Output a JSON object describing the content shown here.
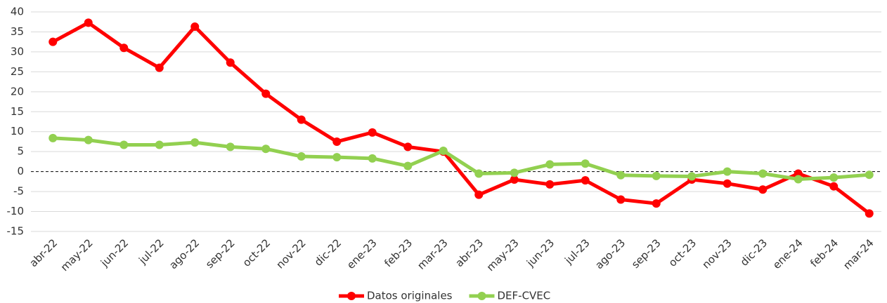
{
  "chart_data": {
    "type": "line",
    "categories": [
      "abr-22",
      "may-22",
      "jun-22",
      "jul-22",
      "ago-22",
      "sep-22",
      "oct-22",
      "nov-22",
      "dic-22",
      "ene-23",
      "feb-23",
      "mar-23",
      "abr-23",
      "may-23",
      "jun-23",
      "jul-23",
      "ago-23",
      "sep-23",
      "oct-23",
      "nov-23",
      "dic-23",
      "ene-24",
      "feb-24",
      "mar-24"
    ],
    "series": [
      {
        "name": "Datos originales",
        "color": "#ff0000",
        "values": [
          32.5,
          37.3,
          31,
          26,
          36.3,
          27.3,
          19.5,
          13,
          7.5,
          9.8,
          6.2,
          5,
          -5.8,
          -2,
          -3.2,
          -2.2,
          -7,
          -8,
          -2,
          -3,
          -4.5,
          -0.5,
          -3.7,
          -10.5
        ]
      },
      {
        "name": "DEF-CVEC",
        "color": "#92d050",
        "values": [
          8.4,
          7.9,
          6.7,
          6.7,
          7.3,
          6.2,
          5.7,
          3.8,
          3.6,
          3.3,
          1.4,
          5.2,
          -0.5,
          -0.3,
          1.8,
          2,
          -0.9,
          -1.1,
          -1.2,
          0,
          -0.5,
          -1.9,
          -1.5,
          -0.8
        ]
      }
    ],
    "ylim": [
      -15,
      40
    ],
    "yticks": [
      -15,
      -10,
      -5,
      0,
      5,
      10,
      15,
      20,
      25,
      30,
      35,
      40
    ],
    "grid": true,
    "legend": "bottom"
  }
}
